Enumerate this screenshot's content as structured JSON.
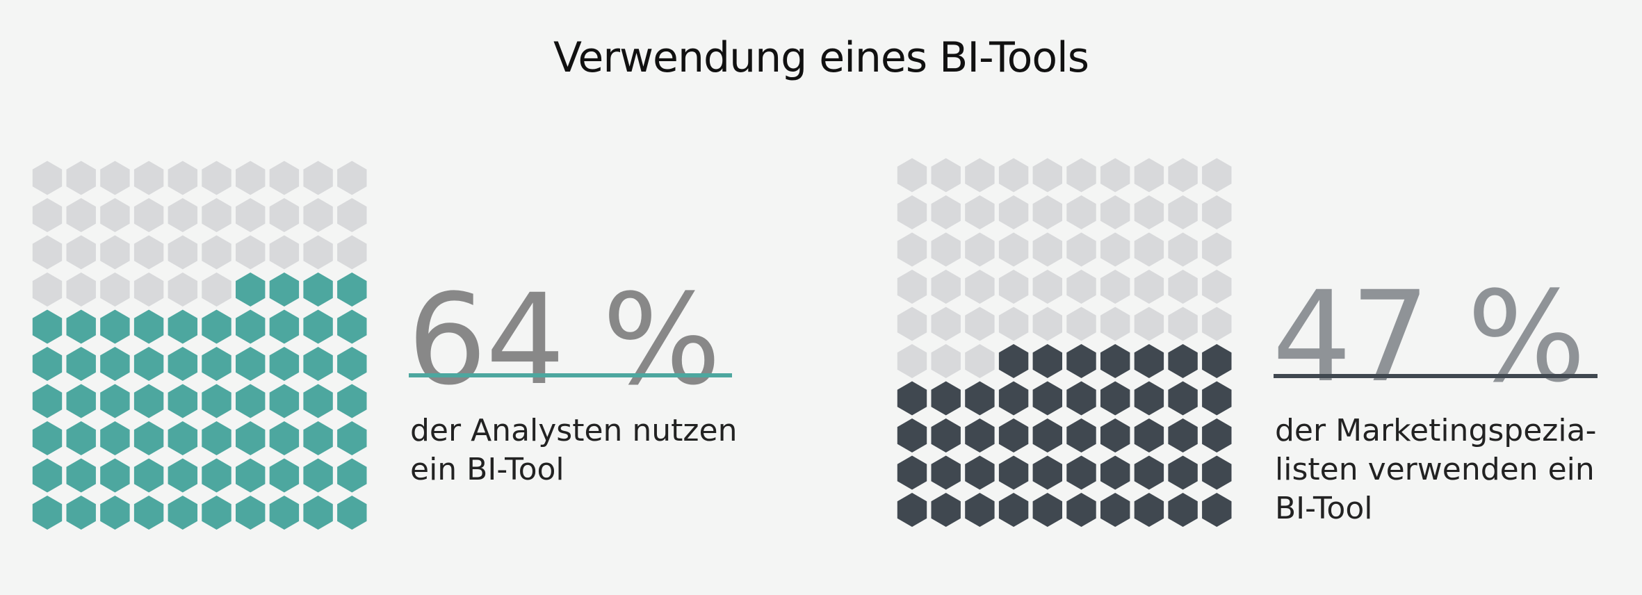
{
  "title": "Verwendung eines BI-Tools",
  "chart_data": [
    {
      "type": "waffle",
      "grid": {
        "rows": 10,
        "cols": 10
      },
      "value": 64,
      "label": "64 %",
      "caption": [
        "der Analysten nutzen",
        "ein BI-Tool"
      ],
      "colors": {
        "filled": "#4da79f",
        "empty": "#d8d9db",
        "number": "#888888",
        "rule": "#4da79f"
      }
    },
    {
      "type": "waffle",
      "grid": {
        "rows": 10,
        "cols": 10
      },
      "value": 47,
      "label": "47 %",
      "caption": [
        "der Marketingspezia-",
        "listen verwenden ein",
        "BI-Tool"
      ],
      "colors": {
        "filled": "#404850",
        "empty": "#d8d9db",
        "number": "#8f9397",
        "rule": "#404850"
      }
    }
  ]
}
